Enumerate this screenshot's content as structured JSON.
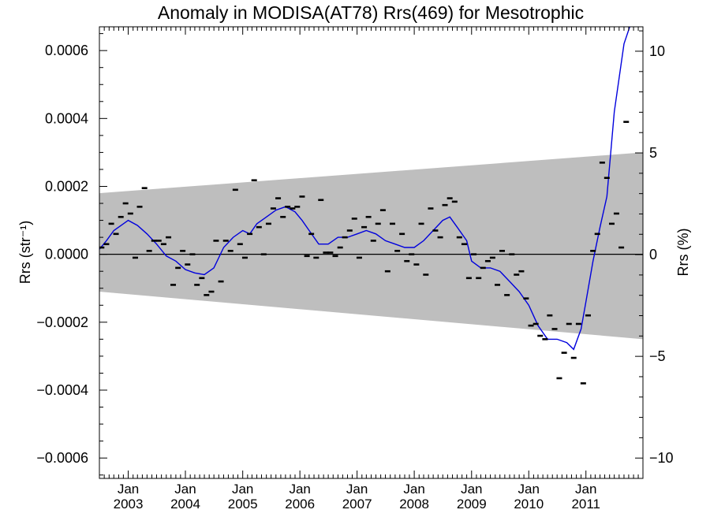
{
  "chart_data": {
    "type": "scatter",
    "title": "Anomaly in MODISA(AT78) Rrs(469) for Mesotrophic",
    "ylabel_left": "Rrs (str⁻¹)",
    "ylabel_right": "Rrs (%)",
    "xlim": [
      "2002-07-01",
      "2011-12-31"
    ],
    "ylim": [
      -0.00066,
      0.00067
    ],
    "y2lim": [
      -11,
      11.2
    ],
    "y2_per_unit": 16700,
    "left_ticks": [
      {
        "value": 0.0006,
        "label": "0.0006"
      },
      {
        "value": 0.0004,
        "label": "0.0004"
      },
      {
        "value": 0.0002,
        "label": "0.0002"
      },
      {
        "value": 0.0,
        "label": "0.0000"
      },
      {
        "value": -0.0002,
        "label": "−0.0002"
      },
      {
        "value": -0.0004,
        "label": "−0.0004"
      },
      {
        "value": -0.0006,
        "label": "−0.0006"
      }
    ],
    "right_ticks": [
      {
        "value": 10,
        "label": "10"
      },
      {
        "value": 5,
        "label": "5"
      },
      {
        "value": 0,
        "label": "0"
      },
      {
        "value": -5,
        "label": "−5"
      },
      {
        "value": -10,
        "label": "−10"
      }
    ],
    "x_ticks": [
      {
        "date": "2003-01-01",
        "month": "Jan",
        "year": "2003"
      },
      {
        "date": "2004-01-01",
        "month": "Jan",
        "year": "2004"
      },
      {
        "date": "2005-01-01",
        "month": "Jan",
        "year": "2005"
      },
      {
        "date": "2006-01-01",
        "month": "Jan",
        "year": "2006"
      },
      {
        "date": "2007-01-01",
        "month": "Jan",
        "year": "2007"
      },
      {
        "date": "2008-01-01",
        "month": "Jan",
        "year": "2008"
      },
      {
        "date": "2009-01-01",
        "month": "Jan",
        "year": "2009"
      },
      {
        "date": "2010-01-01",
        "month": "Jan",
        "year": "2010"
      },
      {
        "date": "2011-01-01",
        "month": "Jan",
        "year": "2011"
      }
    ],
    "band": {
      "color": "#bebebe",
      "start": {
        "date": "2002-07-01",
        "upper": 0.00018,
        "lower": -0.00011
      },
      "end": {
        "date": "2011-12-31",
        "upper": 0.0003,
        "lower": -0.00025
      }
    },
    "zero_line": {
      "value": 0,
      "color": "#000000"
    },
    "points_color": "#000000",
    "line_color": "#0000dd",
    "points": [
      [
        "2002-07-15",
        2e-05
      ],
      [
        "2002-08-15",
        3e-05
      ],
      [
        "2002-09-15",
        9e-05
      ],
      [
        "2002-10-15",
        6e-05
      ],
      [
        "2002-11-15",
        0.00011
      ],
      [
        "2002-12-15",
        0.00015
      ],
      [
        "2003-01-15",
        0.00012
      ],
      [
        "2003-02-15",
        -1e-05
      ],
      [
        "2003-03-15",
        0.00014
      ],
      [
        "2003-04-15",
        0.000195
      ],
      [
        "2003-05-15",
        1e-05
      ],
      [
        "2003-06-15",
        4e-05
      ],
      [
        "2003-07-15",
        4e-05
      ],
      [
        "2003-08-15",
        3e-05
      ],
      [
        "2003-09-15",
        5e-05
      ],
      [
        "2003-10-15",
        -9e-05
      ],
      [
        "2003-11-15",
        -4e-05
      ],
      [
        "2003-12-15",
        1e-05
      ],
      [
        "2004-01-15",
        -3e-05
      ],
      [
        "2004-02-15",
        0.0
      ],
      [
        "2004-03-15",
        -9e-05
      ],
      [
        "2004-04-15",
        -7e-05
      ],
      [
        "2004-05-15",
        -0.00012
      ],
      [
        "2004-06-15",
        -0.00011
      ],
      [
        "2004-07-15",
        4e-05
      ],
      [
        "2004-08-15",
        -8e-05
      ],
      [
        "2004-09-15",
        4e-05
      ],
      [
        "2004-10-15",
        1e-05
      ],
      [
        "2004-11-15",
        0.00019
      ],
      [
        "2004-12-15",
        3e-05
      ],
      [
        "2005-01-15",
        -1e-05
      ],
      [
        "2005-02-15",
        6e-05
      ],
      [
        "2005-03-15",
        0.000218
      ],
      [
        "2005-04-15",
        8e-05
      ],
      [
        "2005-05-15",
        0.0
      ],
      [
        "2005-06-15",
        9e-05
      ],
      [
        "2005-07-15",
        0.000135
      ],
      [
        "2005-08-15",
        0.000165
      ],
      [
        "2005-09-15",
        0.00011
      ],
      [
        "2005-10-15",
        0.00014
      ],
      [
        "2005-11-15",
        0.000135
      ],
      [
        "2005-12-15",
        0.00014
      ],
      [
        "2006-01-15",
        0.00017
      ],
      [
        "2006-02-15",
        -5e-06
      ],
      [
        "2006-03-15",
        6e-05
      ],
      [
        "2006-04-15",
        -1e-05
      ],
      [
        "2006-05-15",
        0.00016
      ],
      [
        "2006-06-15",
        5e-06
      ],
      [
        "2006-07-15",
        5e-06
      ],
      [
        "2006-08-15",
        -5e-06
      ],
      [
        "2006-09-15",
        2e-05
      ],
      [
        "2006-10-15",
        5e-05
      ],
      [
        "2006-11-15",
        7e-05
      ],
      [
        "2006-12-15",
        0.000105
      ],
      [
        "2007-01-15",
        -1e-05
      ],
      [
        "2007-02-15",
        8e-05
      ],
      [
        "2007-03-15",
        0.00011
      ],
      [
        "2007-04-15",
        4e-05
      ],
      [
        "2007-05-15",
        9e-05
      ],
      [
        "2007-06-15",
        0.00013
      ],
      [
        "2007-07-15",
        -5e-05
      ],
      [
        "2007-08-15",
        9e-05
      ],
      [
        "2007-09-15",
        1e-05
      ],
      [
        "2007-10-15",
        6e-05
      ],
      [
        "2007-11-15",
        -2e-05
      ],
      [
        "2007-12-15",
        0.0
      ],
      [
        "2008-01-15",
        -3e-05
      ],
      [
        "2008-02-15",
        9e-05
      ],
      [
        "2008-03-15",
        -6e-05
      ],
      [
        "2008-04-15",
        0.000135
      ],
      [
        "2008-05-15",
        7e-05
      ],
      [
        "2008-06-15",
        5e-05
      ],
      [
        "2008-07-15",
        0.000145
      ],
      [
        "2008-08-15",
        0.000165
      ],
      [
        "2008-09-15",
        0.000155
      ],
      [
        "2008-10-15",
        5e-05
      ],
      [
        "2008-11-15",
        3e-05
      ],
      [
        "2008-12-15",
        -7e-05
      ],
      [
        "2009-01-15",
        0.0
      ],
      [
        "2009-02-15",
        -7e-05
      ],
      [
        "2009-03-15",
        -4e-05
      ],
      [
        "2009-04-15",
        -2e-05
      ],
      [
        "2009-05-15",
        -1e-05
      ],
      [
        "2009-06-15",
        -9e-05
      ],
      [
        "2009-07-15",
        1e-05
      ],
      [
        "2009-08-15",
        -0.00012
      ],
      [
        "2009-09-15",
        0.0
      ],
      [
        "2009-10-15",
        -6e-05
      ],
      [
        "2009-11-15",
        -5e-05
      ],
      [
        "2009-12-15",
        -0.00013
      ],
      [
        "2010-01-15",
        -0.00021
      ],
      [
        "2010-02-15",
        -0.000205
      ],
      [
        "2010-03-15",
        -0.00024
      ],
      [
        "2010-04-15",
        -0.00025
      ],
      [
        "2010-05-15",
        -0.00018
      ],
      [
        "2010-06-15",
        -0.00022
      ],
      [
        "2010-07-15",
        -0.000365
      ],
      [
        "2010-08-15",
        -0.00029
      ],
      [
        "2010-09-15",
        -0.000205
      ],
      [
        "2010-10-15",
        -0.000305
      ],
      [
        "2010-11-15",
        -0.000205
      ],
      [
        "2010-12-15",
        -0.00038
      ],
      [
        "2011-01-15",
        -0.00018
      ],
      [
        "2011-02-15",
        1e-05
      ],
      [
        "2011-03-15",
        6e-05
      ],
      [
        "2011-04-15",
        0.00027
      ],
      [
        "2011-05-15",
        0.000225
      ],
      [
        "2011-06-15",
        9e-05
      ],
      [
        "2011-07-15",
        0.00012
      ],
      [
        "2011-08-15",
        2e-05
      ],
      [
        "2011-09-15",
        0.00039
      ]
    ],
    "line": [
      [
        "2002-07-01",
        1.5e-05
      ],
      [
        "2002-08-15",
        4e-05
      ],
      [
        "2002-10-01",
        7e-05
      ],
      [
        "2002-12-01",
        9e-05
      ],
      [
        "2003-01-01",
        0.0001
      ],
      [
        "2003-03-01",
        8.5e-05
      ],
      [
        "2003-05-01",
        6e-05
      ],
      [
        "2003-07-01",
        3e-05
      ],
      [
        "2003-09-01",
        -5e-06
      ],
      [
        "2003-11-01",
        -2e-05
      ],
      [
        "2004-01-01",
        -4.5e-05
      ],
      [
        "2004-03-01",
        -5.5e-05
      ],
      [
        "2004-05-01",
        -6e-05
      ],
      [
        "2004-07-01",
        -4e-05
      ],
      [
        "2004-09-01",
        2e-05
      ],
      [
        "2004-11-01",
        5e-05
      ],
      [
        "2005-01-01",
        7e-05
      ],
      [
        "2005-02-15",
        6e-05
      ],
      [
        "2005-04-01",
        9e-05
      ],
      [
        "2005-06-01",
        0.00011
      ],
      [
        "2005-08-01",
        0.00013
      ],
      [
        "2005-10-01",
        0.00014
      ],
      [
        "2005-12-01",
        0.000125
      ],
      [
        "2006-01-15",
        0.0001
      ],
      [
        "2006-03-01",
        7e-05
      ],
      [
        "2006-05-01",
        3e-05
      ],
      [
        "2006-07-01",
        3e-05
      ],
      [
        "2006-09-01",
        5e-05
      ],
      [
        "2006-11-01",
        5e-05
      ],
      [
        "2007-01-01",
        6e-05
      ],
      [
        "2007-03-01",
        7e-05
      ],
      [
        "2007-05-01",
        6e-05
      ],
      [
        "2007-07-01",
        4e-05
      ],
      [
        "2007-09-01",
        3e-05
      ],
      [
        "2007-11-01",
        2e-05
      ],
      [
        "2008-01-01",
        2e-05
      ],
      [
        "2008-03-01",
        4e-05
      ],
      [
        "2008-05-01",
        7e-05
      ],
      [
        "2008-07-01",
        0.0001
      ],
      [
        "2008-08-15",
        0.00011
      ],
      [
        "2008-10-01",
        8e-05
      ],
      [
        "2008-12-01",
        4e-05
      ],
      [
        "2009-01-01",
        -2e-05
      ],
      [
        "2009-03-01",
        -4e-05
      ],
      [
        "2009-05-01",
        -4e-05
      ],
      [
        "2009-07-01",
        -5e-05
      ],
      [
        "2009-09-01",
        -8e-05
      ],
      [
        "2009-11-01",
        -0.00011
      ],
      [
        "2010-01-01",
        -0.00015
      ],
      [
        "2010-03-01",
        -0.00021
      ],
      [
        "2010-05-01",
        -0.00025
      ],
      [
        "2010-07-01",
        -0.00025
      ],
      [
        "2010-09-01",
        -0.00026
      ],
      [
        "2010-10-15",
        -0.00028
      ],
      [
        "2010-12-01",
        -0.00022
      ],
      [
        "2011-01-01",
        -0.00014
      ],
      [
        "2011-02-15",
        -2e-05
      ],
      [
        "2011-04-01",
        8e-05
      ],
      [
        "2011-05-15",
        0.00017
      ],
      [
        "2011-07-01",
        0.00042
      ],
      [
        "2011-09-01",
        0.00062
      ],
      [
        "2011-10-15",
        0.00068
      ]
    ]
  }
}
